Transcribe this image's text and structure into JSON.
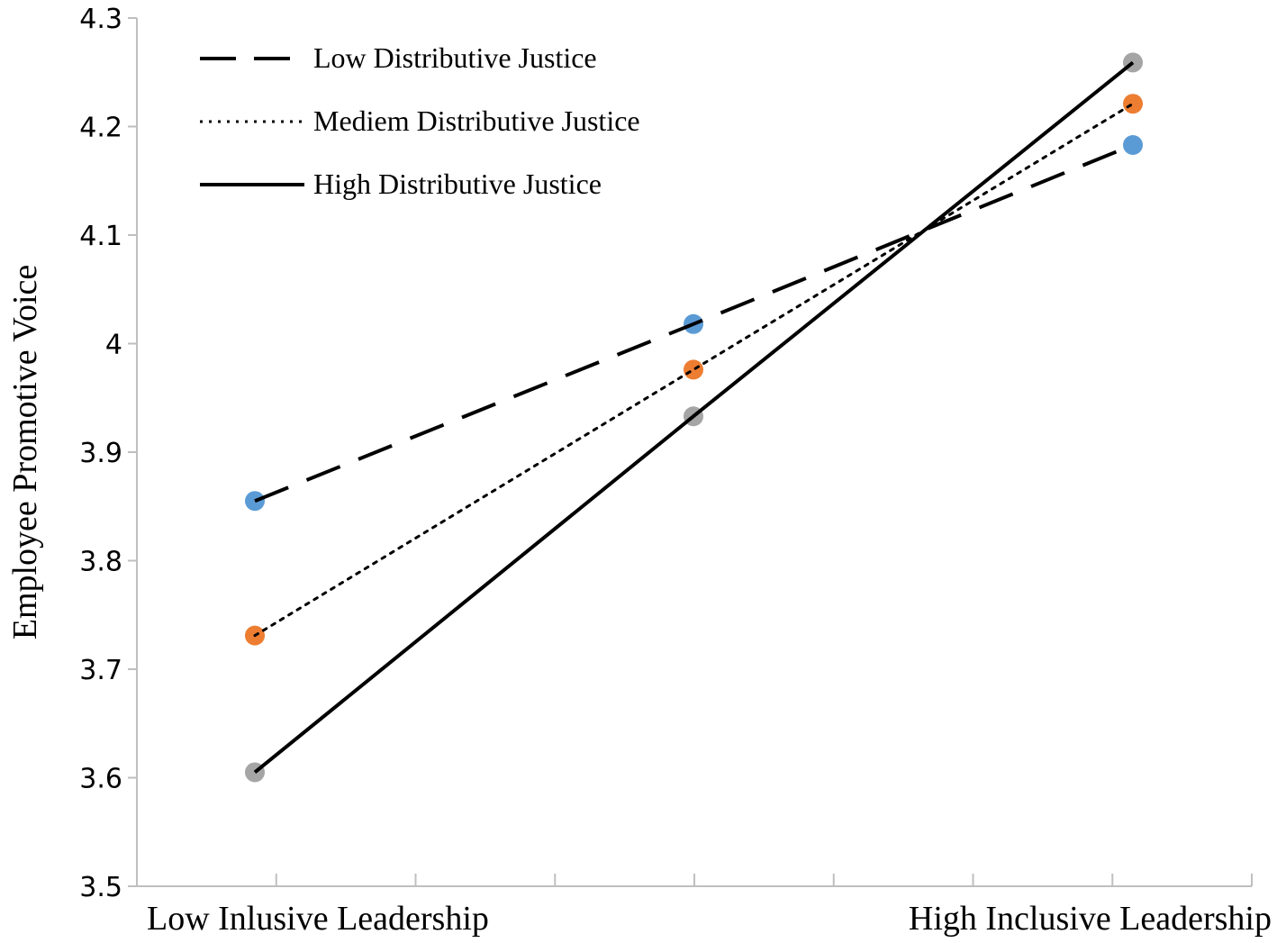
{
  "chart_data": {
    "type": "line",
    "title": "",
    "xlabel": "",
    "ylabel": "Employee  Promotive Voice",
    "ylim": [
      3.5,
      4.3
    ],
    "yticks": [
      "3.5",
      "3.6",
      "3.7",
      "3.8",
      "3.9",
      "4",
      "4.1",
      "4.2",
      "4.3"
    ],
    "categories": [
      "Low Inlusive Leadership",
      "",
      "High Inclusive Leadership"
    ],
    "grid": false,
    "legend_position": "top-left",
    "series": [
      {
        "name": "Low Distributive Justice",
        "line_style": "dashed",
        "marker_color": "#5B9BD5",
        "values": [
          3.855,
          4.018,
          4.183
        ]
      },
      {
        "name": "Mediem Distributive Justice",
        "line_style": "dotted",
        "marker_color": "#ED7D31",
        "values": [
          3.731,
          3.976,
          4.221
        ]
      },
      {
        "name": "High Distributive Justice",
        "line_style": "solid",
        "marker_color": "#A5A5A5",
        "values": [
          3.605,
          3.933,
          4.259
        ]
      }
    ]
  }
}
